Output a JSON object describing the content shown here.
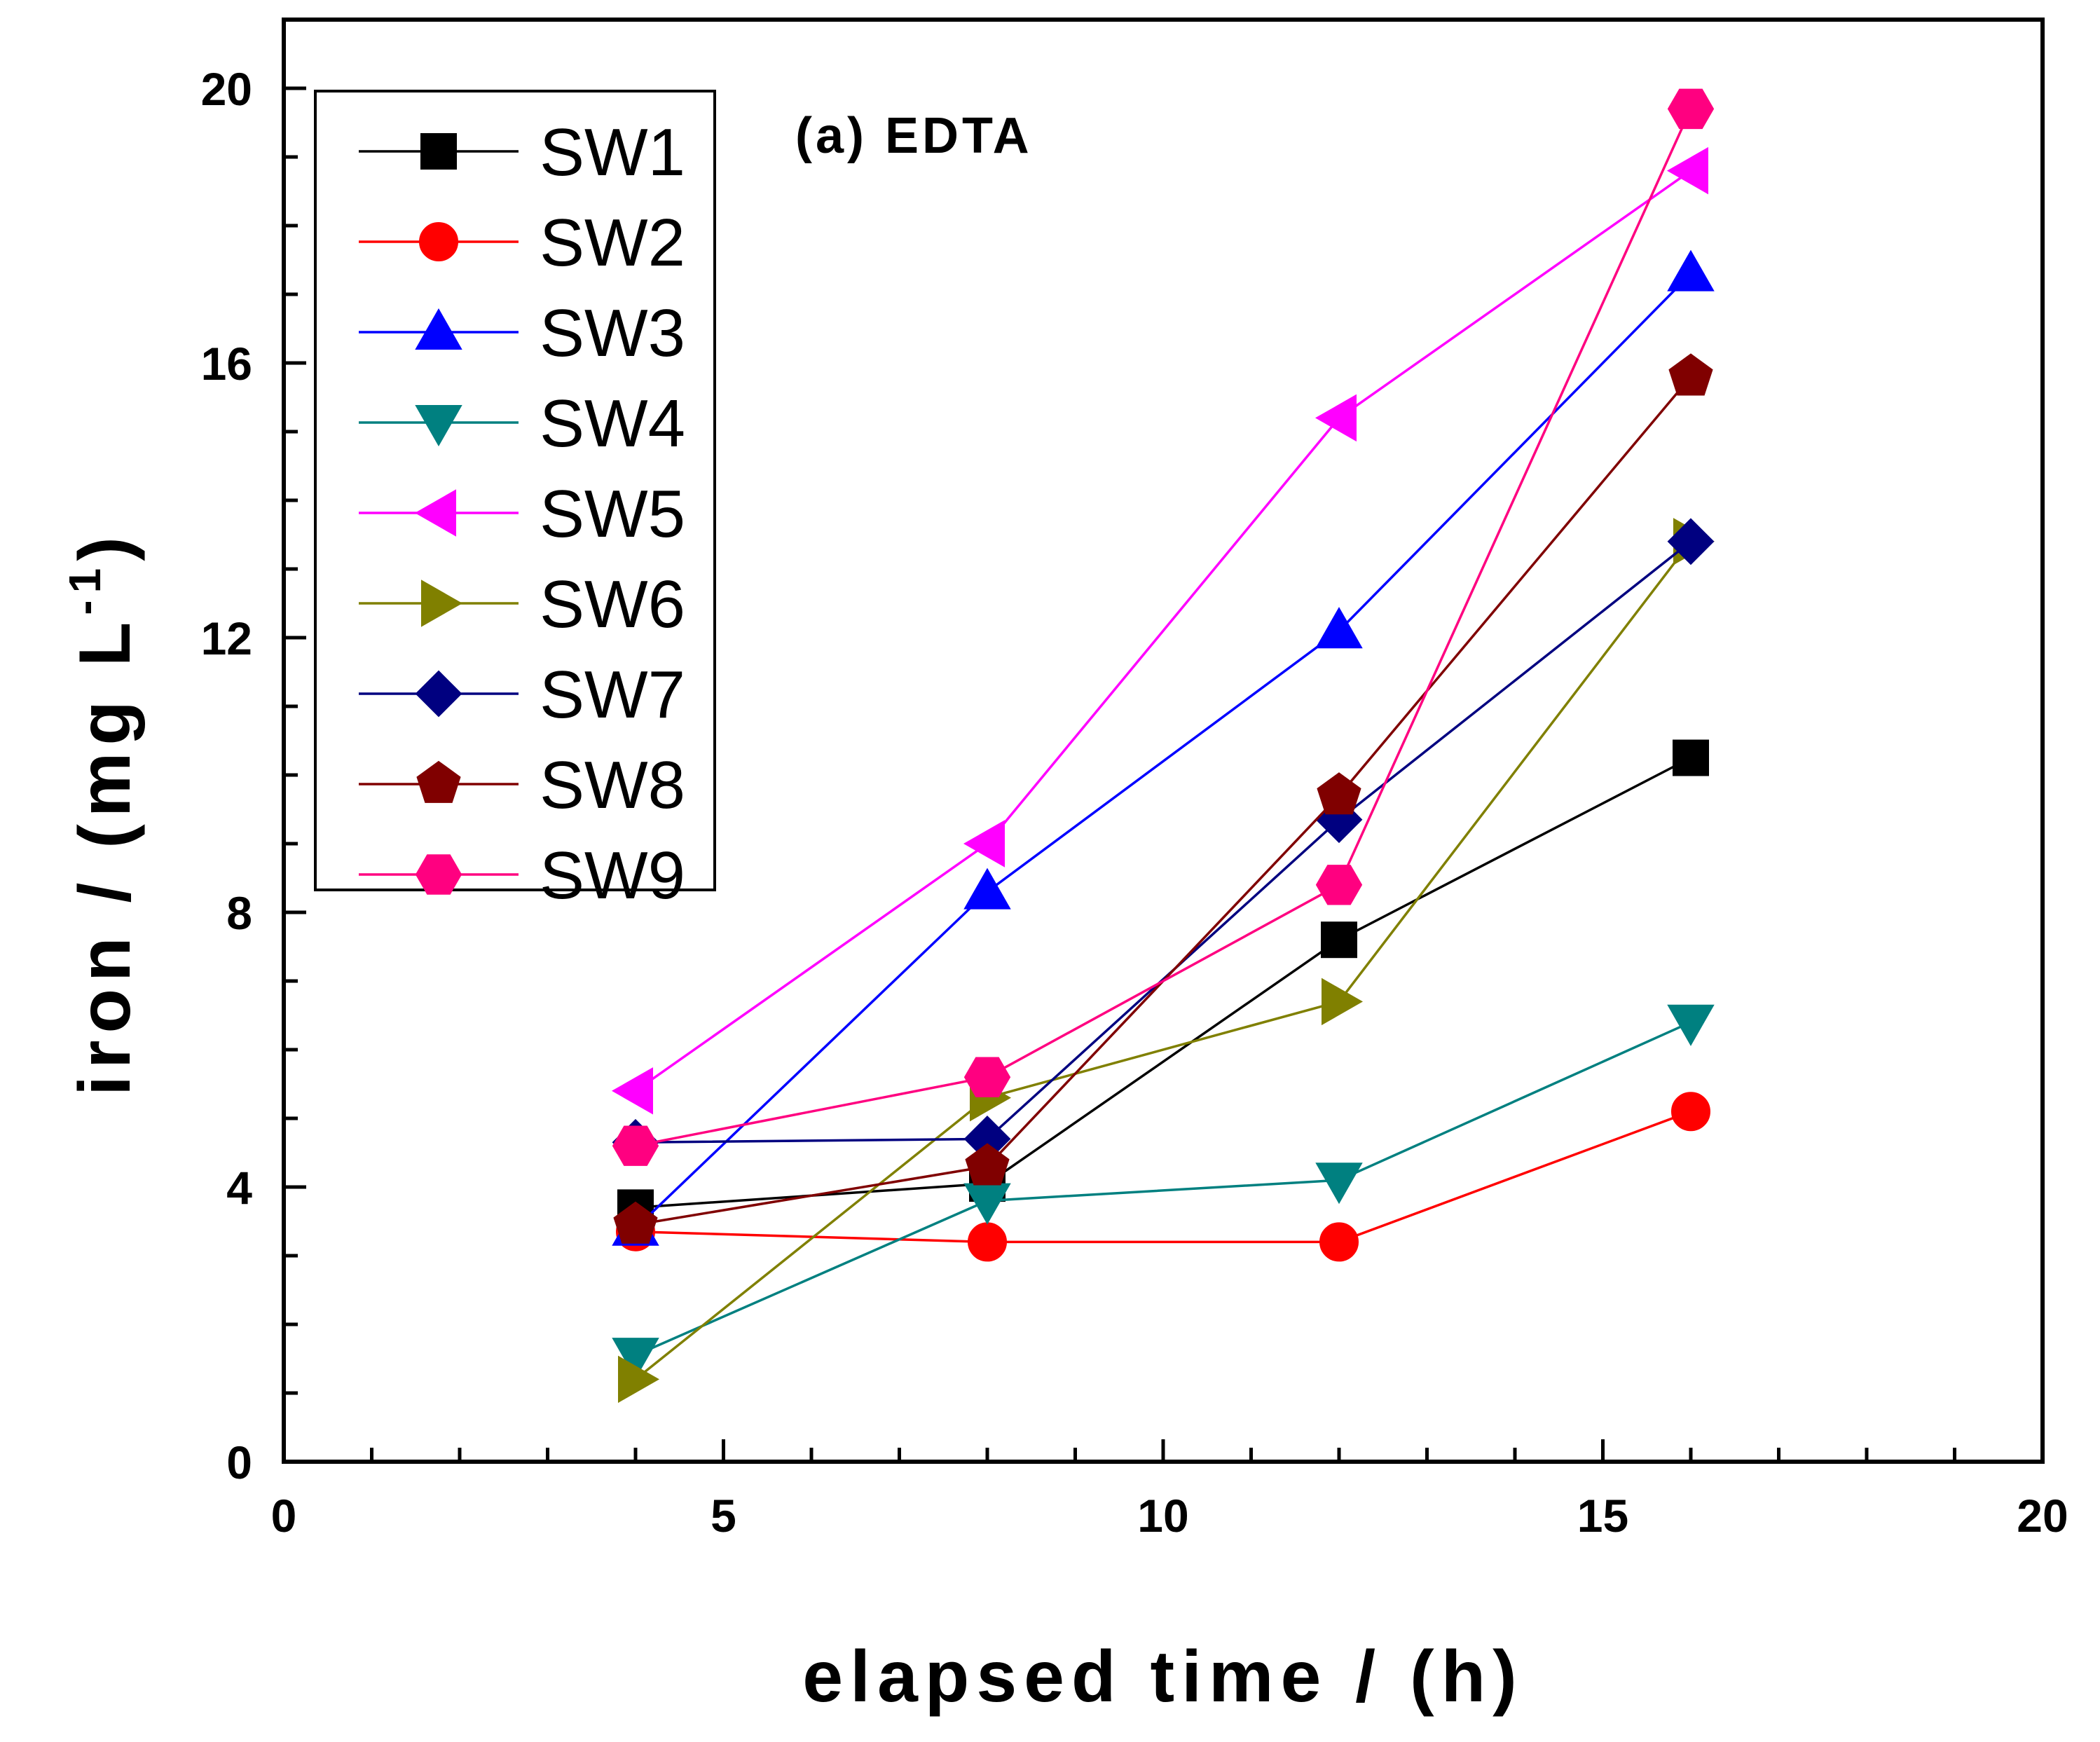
{
  "chart_data": {
    "type": "line",
    "title": "",
    "annotation": "(a) EDTA",
    "xlabel": "elapsed time / (h)",
    "ylabel": "iron / (mg L",
    "ylabel_superscript": "-1",
    "ylabel_close": ")",
    "xlim": [
      0,
      20
    ],
    "ylim": [
      0,
      21
    ],
    "x_ticks": [
      0,
      5,
      10,
      15,
      20
    ],
    "x_tick_labels": [
      "0",
      "5",
      "10",
      "15",
      "20"
    ],
    "y_ticks": [
      0,
      4,
      8,
      12,
      16,
      20
    ],
    "y_tick_labels": [
      "0",
      "4",
      "8",
      "12",
      "16",
      "20"
    ],
    "grid": false,
    "legend_position": "top-left",
    "x": [
      4,
      8,
      12,
      16
    ],
    "series": [
      {
        "name": "SW1",
        "color": "#000000",
        "marker": "square",
        "values": [
          3.7,
          4.05,
          7.6,
          10.25
        ]
      },
      {
        "name": "SW2",
        "color": "#ff0000",
        "marker": "circle",
        "values": [
          3.35,
          3.2,
          3.2,
          5.1
        ]
      },
      {
        "name": "SW3",
        "color": "#0000ff",
        "marker": "triangle-up",
        "values": [
          3.4,
          8.3,
          12.1,
          17.3
        ]
      },
      {
        "name": "SW4",
        "color": "#008080",
        "marker": "triangle-down",
        "values": [
          1.55,
          3.8,
          4.1,
          6.4
        ]
      },
      {
        "name": "SW5",
        "color": "#ff00ff",
        "marker": "triangle-left",
        "values": [
          5.4,
          9.0,
          15.2,
          18.8
        ]
      },
      {
        "name": "SW6",
        "color": "#808000",
        "marker": "triangle-right",
        "values": [
          1.2,
          5.3,
          6.7,
          13.4
        ]
      },
      {
        "name": "SW7",
        "color": "#000080",
        "marker": "diamond",
        "values": [
          4.65,
          4.7,
          9.35,
          13.4
        ]
      },
      {
        "name": "SW8",
        "color": "#800000",
        "marker": "pentagon",
        "values": [
          3.45,
          4.3,
          9.7,
          15.8
        ]
      },
      {
        "name": "SW9",
        "color": "#ff0080",
        "marker": "hexagon",
        "values": [
          4.6,
          5.6,
          8.4,
          19.7
        ]
      }
    ]
  }
}
